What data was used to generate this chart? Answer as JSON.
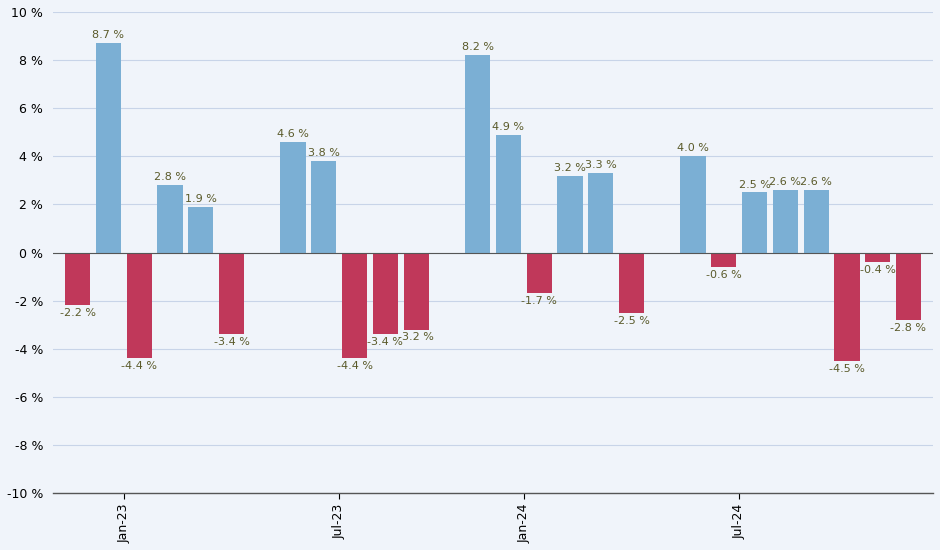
{
  "bars": [
    {
      "x": 0,
      "value": -2.2,
      "color": "#c0385a"
    },
    {
      "x": 1,
      "value": 8.7,
      "color": "#7bafd4"
    },
    {
      "x": 2,
      "value": -4.4,
      "color": "#c0385a"
    },
    {
      "x": 3,
      "value": 2.8,
      "color": "#7bafd4"
    },
    {
      "x": 4,
      "value": 1.9,
      "color": "#7bafd4"
    },
    {
      "x": 5,
      "value": -3.4,
      "color": "#c0385a"
    },
    {
      "x": 7,
      "value": 4.6,
      "color": "#7bafd4"
    },
    {
      "x": 8,
      "value": 3.8,
      "color": "#7bafd4"
    },
    {
      "x": 9,
      "value": -4.4,
      "color": "#c0385a"
    },
    {
      "x": 10,
      "value": -3.4,
      "color": "#c0385a"
    },
    {
      "x": 11,
      "value": -3.2,
      "color": "#c0385a"
    },
    {
      "x": 13,
      "value": 8.2,
      "color": "#7bafd4"
    },
    {
      "x": 14,
      "value": 4.9,
      "color": "#7bafd4"
    },
    {
      "x": 15,
      "value": -1.7,
      "color": "#c0385a"
    },
    {
      "x": 16,
      "value": 3.2,
      "color": "#7bafd4"
    },
    {
      "x": 17,
      "value": 3.3,
      "color": "#7bafd4"
    },
    {
      "x": 18,
      "value": -2.5,
      "color": "#c0385a"
    },
    {
      "x": 20,
      "value": 4.0,
      "color": "#7bafd4"
    },
    {
      "x": 21,
      "value": -0.6,
      "color": "#c0385a"
    },
    {
      "x": 22,
      "value": 2.5,
      "color": "#7bafd4"
    },
    {
      "x": 23,
      "value": 2.6,
      "color": "#7bafd4"
    },
    {
      "x": 24,
      "value": 2.6,
      "color": "#7bafd4"
    },
    {
      "x": 25,
      "value": -4.5,
      "color": "#c0385a"
    },
    {
      "x": 26,
      "value": -0.4,
      "color": "#c0385a"
    },
    {
      "x": 27,
      "value": -2.8,
      "color": "#c0385a"
    }
  ],
  "xtick_positions": [
    1.5,
    8.5,
    14.5,
    21.5
  ],
  "xtick_labels": [
    "Jan-23",
    "Jul-23",
    "Jan-24",
    "Jul-24"
  ],
  "ylim": [
    -10,
    10
  ],
  "yticks": [
    -10,
    -8,
    -6,
    -4,
    -2,
    0,
    2,
    4,
    6,
    8,
    10
  ],
  "background_color": "#f0f4fa",
  "plot_bg_color": "#f0f4fa",
  "grid_color": "#c8d4e8",
  "bar_width": 0.82,
  "label_fontsize": 8.0,
  "tick_fontsize": 9,
  "label_color": "#5a5a2a",
  "xlim_left": -0.8,
  "xlim_right": 27.8
}
